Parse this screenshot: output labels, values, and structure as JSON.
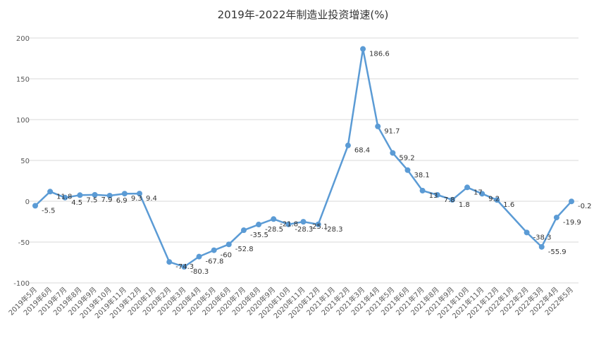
{
  "chart_data": {
    "type": "line",
    "title": "2019年-2022年制造业投资增速(%)",
    "xlabel": "",
    "ylabel": "",
    "ylim": [
      -100,
      200
    ],
    "yticks": [
      -100,
      -50,
      0,
      50,
      100,
      150,
      200
    ],
    "grid": true,
    "legend": "none",
    "line_color": "#5b9bd5",
    "categories": [
      "2019年5月",
      "2019年6月",
      "2019年7月",
      "2019年8月",
      "2019年9月",
      "2019年10月",
      "2019年11月",
      "2019年12月",
      "2020年1月",
      "2020年2月",
      "2020年3月",
      "2020年4月",
      "2020年5月",
      "2020年6月",
      "2020年7月",
      "2020年8月",
      "2020年9月",
      "2020年10月",
      "2020年11月",
      "2020年12月",
      "2021年1月",
      "2021年2月",
      "2021年3月",
      "2021年4月",
      "2021年5月",
      "2021年6月",
      "2021年7月",
      "2021年8月",
      "2021年9月",
      "2021年10月",
      "2021年11月",
      "2021年12月",
      "2022年1月",
      "2022年2月",
      "2022年3月",
      "2022年4月",
      "2022年5月"
    ],
    "values": [
      -5.5,
      11.8,
      4.5,
      7.5,
      7.9,
      6.9,
      9.3,
      9.4,
      null,
      -74.3,
      -80.3,
      -67.8,
      -60,
      -52.8,
      -35.5,
      -28.5,
      -21.8,
      -28.3,
      -25.1,
      -28.3,
      null,
      68.4,
      186.6,
      91.7,
      59.2,
      38.1,
      13,
      7.8,
      1.8,
      17,
      9.2,
      1.6,
      null,
      -38.3,
      -55.9,
      -19.9,
      -0.2
    ],
    "labels": [
      "-5.5",
      "11.8",
      "4.5",
      "7.5",
      "7.9",
      "6.9",
      "9.3",
      "9.4",
      "",
      "-74.3",
      "-80.3",
      "-67.8",
      "-60",
      "-52.8",
      "-35.5",
      "-28.5",
      "-21.8",
      "-28.3",
      "-25.1",
      "-28.3",
      "",
      "68.4",
      "186.6",
      "91.7",
      "59.2",
      "38.1",
      "13",
      "7.8",
      "1.8",
      "17",
      "9.2",
      "1.6",
      "",
      "-38.3",
      "-55.9",
      "-19.9",
      "-0.2"
    ]
  }
}
